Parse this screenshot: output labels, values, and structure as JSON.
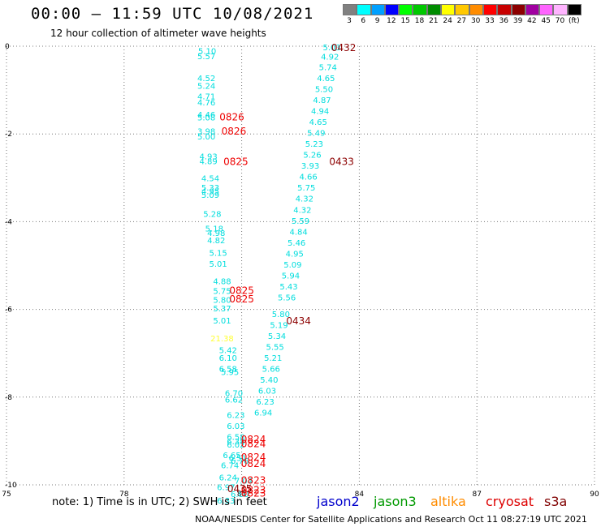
{
  "header": {
    "title": "00:00 – 11:59 UTC 10/08/2021",
    "subtitle": "12 hour collection of altimeter wave heights"
  },
  "colorbar": {
    "colors": [
      "#808080",
      "#00ffff",
      "#00a0ff",
      "#0000ff",
      "#00ff00",
      "#00c800",
      "#008c00",
      "#ffff00",
      "#ffc800",
      "#ff8c00",
      "#ff0000",
      "#c80000",
      "#8c0000",
      "#a000a0",
      "#ff64ff",
      "#ffb4ff",
      "#000000"
    ],
    "labels": [
      "3",
      "6",
      "9",
      "12",
      "15",
      "18",
      "21",
      "24",
      "27",
      "30",
      "33",
      "36",
      "39",
      "42",
      "45",
      "70",
      "(ft)"
    ]
  },
  "note": "note: 1) Time is in UTC; 2) SWH is in feet",
  "legend": [
    {
      "name": "jason2",
      "color": "#0000cc"
    },
    {
      "name": "jason3",
      "color": "#009900"
    },
    {
      "name": "altika",
      "color": "#ff8c00"
    },
    {
      "name": "cryosat",
      "color": "#dd0000"
    },
    {
      "name": "s3a",
      "color": "#800000"
    }
  ],
  "footer": "NOAA/NESDIS Center for Satellite Applications and Research    Oct 11 08:27:19 UTC 2021",
  "chart_data": {
    "type": "scatter",
    "xlim": [
      75,
      90
    ],
    "ylim": [
      -10,
      0
    ],
    "x_ticks": [
      "75",
      "78",
      "81",
      "84",
      "87",
      "90"
    ],
    "y_ticks": [
      "0",
      "-2",
      "-4",
      "-6",
      "-8",
      "-10"
    ],
    "grid": true,
    "wave_heights": [
      {
        "x": 83.3,
        "y": -0.02,
        "label": "5.03",
        "color": "#00dddd"
      },
      {
        "x": 83.25,
        "y": -0.23,
        "label": "4.92",
        "color": "#00dddd"
      },
      {
        "x": 83.2,
        "y": -0.47,
        "label": "5.74",
        "color": "#00dddd"
      },
      {
        "x": 83.15,
        "y": -0.72,
        "label": "4.65",
        "color": "#00dddd"
      },
      {
        "x": 83.1,
        "y": -0.97,
        "label": "5.50",
        "color": "#00dddd"
      },
      {
        "x": 83.05,
        "y": -1.22,
        "label": "4.87",
        "color": "#00dddd"
      },
      {
        "x": 83.0,
        "y": -1.47,
        "label": "4.94",
        "color": "#00dddd"
      },
      {
        "x": 82.95,
        "y": -1.72,
        "label": "4.65",
        "color": "#00dddd"
      },
      {
        "x": 82.9,
        "y": -1.97,
        "label": "5.49",
        "color": "#00dddd"
      },
      {
        "x": 82.85,
        "y": -2.22,
        "label": "5.23",
        "color": "#00dddd"
      },
      {
        "x": 82.8,
        "y": -2.47,
        "label": "5.26",
        "color": "#00dddd"
      },
      {
        "x": 82.75,
        "y": -2.72,
        "label": "3.93",
        "color": "#00dddd"
      },
      {
        "x": 82.7,
        "y": -2.97,
        "label": "4.66",
        "color": "#00dddd"
      },
      {
        "x": 82.65,
        "y": -3.22,
        "label": "5.75",
        "color": "#00dddd"
      },
      {
        "x": 82.6,
        "y": -3.47,
        "label": "4.32",
        "color": "#00dddd"
      },
      {
        "x": 82.55,
        "y": -3.72,
        "label": "4.32",
        "color": "#00dddd"
      },
      {
        "x": 82.5,
        "y": -3.97,
        "label": "5.59",
        "color": "#00dddd"
      },
      {
        "x": 82.45,
        "y": -4.22,
        "label": "4.84",
        "color": "#00dddd"
      },
      {
        "x": 82.4,
        "y": -4.47,
        "label": "5.46",
        "color": "#00dddd"
      },
      {
        "x": 82.35,
        "y": -4.72,
        "label": "4.95",
        "color": "#00dddd"
      },
      {
        "x": 82.3,
        "y": -4.97,
        "label": "5.09",
        "color": "#00dddd"
      },
      {
        "x": 82.25,
        "y": -5.22,
        "label": "5.94",
        "color": "#00dddd"
      },
      {
        "x": 82.2,
        "y": -5.47,
        "label": "5.43",
        "color": "#00dddd"
      },
      {
        "x": 82.15,
        "y": -5.72,
        "label": "5.56",
        "color": "#00dddd"
      },
      {
        "x": 82.0,
        "y": -6.1,
        "label": "5.80",
        "color": "#00dddd"
      },
      {
        "x": 81.95,
        "y": -6.35,
        "label": "5.19",
        "color": "#00dddd"
      },
      {
        "x": 81.9,
        "y": -6.6,
        "label": "5.34",
        "color": "#00dddd"
      },
      {
        "x": 81.85,
        "y": -6.85,
        "label": "5.55",
        "color": "#00dddd"
      },
      {
        "x": 81.8,
        "y": -7.1,
        "label": "5.21",
        "color": "#00dddd"
      },
      {
        "x": 81.75,
        "y": -7.35,
        "label": "5.66",
        "color": "#00dddd"
      },
      {
        "x": 81.7,
        "y": -7.6,
        "label": "5.40",
        "color": "#00dddd"
      },
      {
        "x": 81.65,
        "y": -7.85,
        "label": "6.03",
        "color": "#00dddd"
      },
      {
        "x": 81.6,
        "y": -8.1,
        "label": "6.23",
        "color": "#00dddd"
      },
      {
        "x": 81.55,
        "y": -8.35,
        "label": "6.94",
        "color": "#00dddd"
      },
      {
        "x": 80.12,
        "y": -0.1,
        "label": "5.10",
        "color": "#00dddd"
      },
      {
        "x": 80.1,
        "y": -0.22,
        "label": "5.57",
        "color": "#00dddd"
      },
      {
        "x": 80.1,
        "y": -0.72,
        "label": "4.52",
        "color": "#00dddd"
      },
      {
        "x": 80.1,
        "y": -0.9,
        "label": "5.24",
        "color": "#00dddd"
      },
      {
        "x": 80.1,
        "y": -1.14,
        "label": "4.71",
        "color": "#00dddd"
      },
      {
        "x": 80.1,
        "y": -1.28,
        "label": "4.76",
        "color": "#00dddd"
      },
      {
        "x": 80.1,
        "y": -1.55,
        "label": "4.46",
        "color": "#00dddd"
      },
      {
        "x": 80.1,
        "y": -1.62,
        "label": "5.08",
        "color": "#00dddd"
      },
      {
        "x": 80.1,
        "y": -1.93,
        "label": "3.98",
        "color": "#00dddd"
      },
      {
        "x": 80.1,
        "y": -2.05,
        "label": "5.00",
        "color": "#00dddd"
      },
      {
        "x": 80.15,
        "y": -2.5,
        "label": "4.93",
        "color": "#00dddd"
      },
      {
        "x": 80.15,
        "y": -2.62,
        "label": "4.89",
        "color": "#00dddd"
      },
      {
        "x": 80.2,
        "y": -3.0,
        "label": "4.54",
        "color": "#00dddd"
      },
      {
        "x": 80.2,
        "y": -3.22,
        "label": "5.33",
        "color": "#00dddd"
      },
      {
        "x": 80.2,
        "y": -3.3,
        "label": "4.95",
        "color": "#00dddd"
      },
      {
        "x": 80.2,
        "y": -3.38,
        "label": "5.09",
        "color": "#00dddd"
      },
      {
        "x": 80.25,
        "y": -3.82,
        "label": "5.28",
        "color": "#00dddd"
      },
      {
        "x": 80.3,
        "y": -4.15,
        "label": "5.18",
        "color": "#00dddd"
      },
      {
        "x": 80.35,
        "y": -4.25,
        "label": "4.98",
        "color": "#00dddd"
      },
      {
        "x": 80.35,
        "y": -4.42,
        "label": "4.82",
        "color": "#00dddd"
      },
      {
        "x": 80.4,
        "y": -4.7,
        "label": "5.15",
        "color": "#00dddd"
      },
      {
        "x": 80.4,
        "y": -4.95,
        "label": "5.01",
        "color": "#00dddd"
      },
      {
        "x": 80.5,
        "y": -5.35,
        "label": "4.88",
        "color": "#00dddd"
      },
      {
        "x": 80.5,
        "y": -5.57,
        "label": "5.75",
        "color": "#00dddd"
      },
      {
        "x": 80.5,
        "y": -5.78,
        "label": "5.80",
        "color": "#00dddd"
      },
      {
        "x": 80.5,
        "y": -5.97,
        "label": "5.37",
        "color": "#00dddd"
      },
      {
        "x": 80.5,
        "y": -6.25,
        "label": "5.01",
        "color": "#00dddd"
      },
      {
        "x": 80.5,
        "y": -6.65,
        "label": "21.38",
        "color": "#ffff33"
      },
      {
        "x": 80.65,
        "y": -6.92,
        "label": "5.42",
        "color": "#00dddd"
      },
      {
        "x": 80.65,
        "y": -7.1,
        "label": "6.10",
        "color": "#00dddd"
      },
      {
        "x": 80.65,
        "y": -7.35,
        "label": "6.58",
        "color": "#00dddd"
      },
      {
        "x": 80.7,
        "y": -7.42,
        "label": "5.95",
        "color": "#00dddd"
      },
      {
        "x": 80.8,
        "y": -7.9,
        "label": "6.70",
        "color": "#00dddd"
      },
      {
        "x": 80.8,
        "y": -8.05,
        "label": "6.62",
        "color": "#00dddd"
      },
      {
        "x": 80.85,
        "y": -8.4,
        "label": "6.23",
        "color": "#00dddd"
      },
      {
        "x": 80.85,
        "y": -8.65,
        "label": "6.03",
        "color": "#00dddd"
      },
      {
        "x": 80.85,
        "y": -8.9,
        "label": "6.58",
        "color": "#00dddd"
      },
      {
        "x": 80.85,
        "y": -9.0,
        "label": "6.38",
        "color": "#00dddd"
      },
      {
        "x": 80.85,
        "y": -9.08,
        "label": "6.02",
        "color": "#00dddd"
      },
      {
        "x": 80.75,
        "y": -9.32,
        "label": "6.65",
        "color": "#00dddd"
      },
      {
        "x": 80.9,
        "y": -9.38,
        "label": "6.51",
        "color": "#00dddd"
      },
      {
        "x": 80.7,
        "y": -9.55,
        "label": "6.74",
        "color": "#00dddd"
      },
      {
        "x": 80.95,
        "y": -9.45,
        "label": "6.76",
        "color": "#00dddd"
      },
      {
        "x": 80.65,
        "y": -9.82,
        "label": "6.24",
        "color": "#00dddd"
      },
      {
        "x": 81.05,
        "y": -9.9,
        "label": "7.04",
        "color": "#00dddd"
      },
      {
        "x": 80.6,
        "y": -10.05,
        "label": "6.97",
        "color": "#00dddd"
      },
      {
        "x": 80.95,
        "y": -10.2,
        "label": "6.80",
        "color": "#00dddd"
      },
      {
        "x": 80.6,
        "y": -10.35,
        "label": "6.33",
        "color": "#00dddd"
      }
    ],
    "time_labels": [
      {
        "x": 83.6,
        "y": -0.02,
        "label": "0432",
        "color": "#8c0000"
      },
      {
        "x": 80.75,
        "y": -1.6,
        "label": "0826",
        "color": "#ee0000"
      },
      {
        "x": 80.8,
        "y": -1.92,
        "label": "0826",
        "color": "#ee0000"
      },
      {
        "x": 83.55,
        "y": -2.62,
        "label": "0433",
        "color": "#8c0000"
      },
      {
        "x": 80.85,
        "y": -2.62,
        "label": "0825",
        "color": "#ee0000"
      },
      {
        "x": 81.0,
        "y": -5.55,
        "label": "0825",
        "color": "#ee0000"
      },
      {
        "x": 81.0,
        "y": -5.75,
        "label": "0825",
        "color": "#ee0000"
      },
      {
        "x": 82.45,
        "y": -6.25,
        "label": "0434",
        "color": "#8c0000"
      },
      {
        "x": 81.3,
        "y": -8.95,
        "label": "0824",
        "color": "#ee0000"
      },
      {
        "x": 81.3,
        "y": -9.05,
        "label": "0824",
        "color": "#ee0000"
      },
      {
        "x": 81.3,
        "y": -9.35,
        "label": "0824",
        "color": "#ee0000"
      },
      {
        "x": 81.3,
        "y": -9.5,
        "label": "0824",
        "color": "#ee0000"
      },
      {
        "x": 81.3,
        "y": -9.88,
        "label": "0823",
        "color": "#ee0000"
      },
      {
        "x": 81.3,
        "y": -10.1,
        "label": "0823",
        "color": "#ee0000"
      },
      {
        "x": 81.3,
        "y": -10.18,
        "label": "0823",
        "color": "#ee0000"
      },
      {
        "x": 80.95,
        "y": -10.07,
        "label": "0435",
        "color": "#8c0000"
      }
    ]
  }
}
